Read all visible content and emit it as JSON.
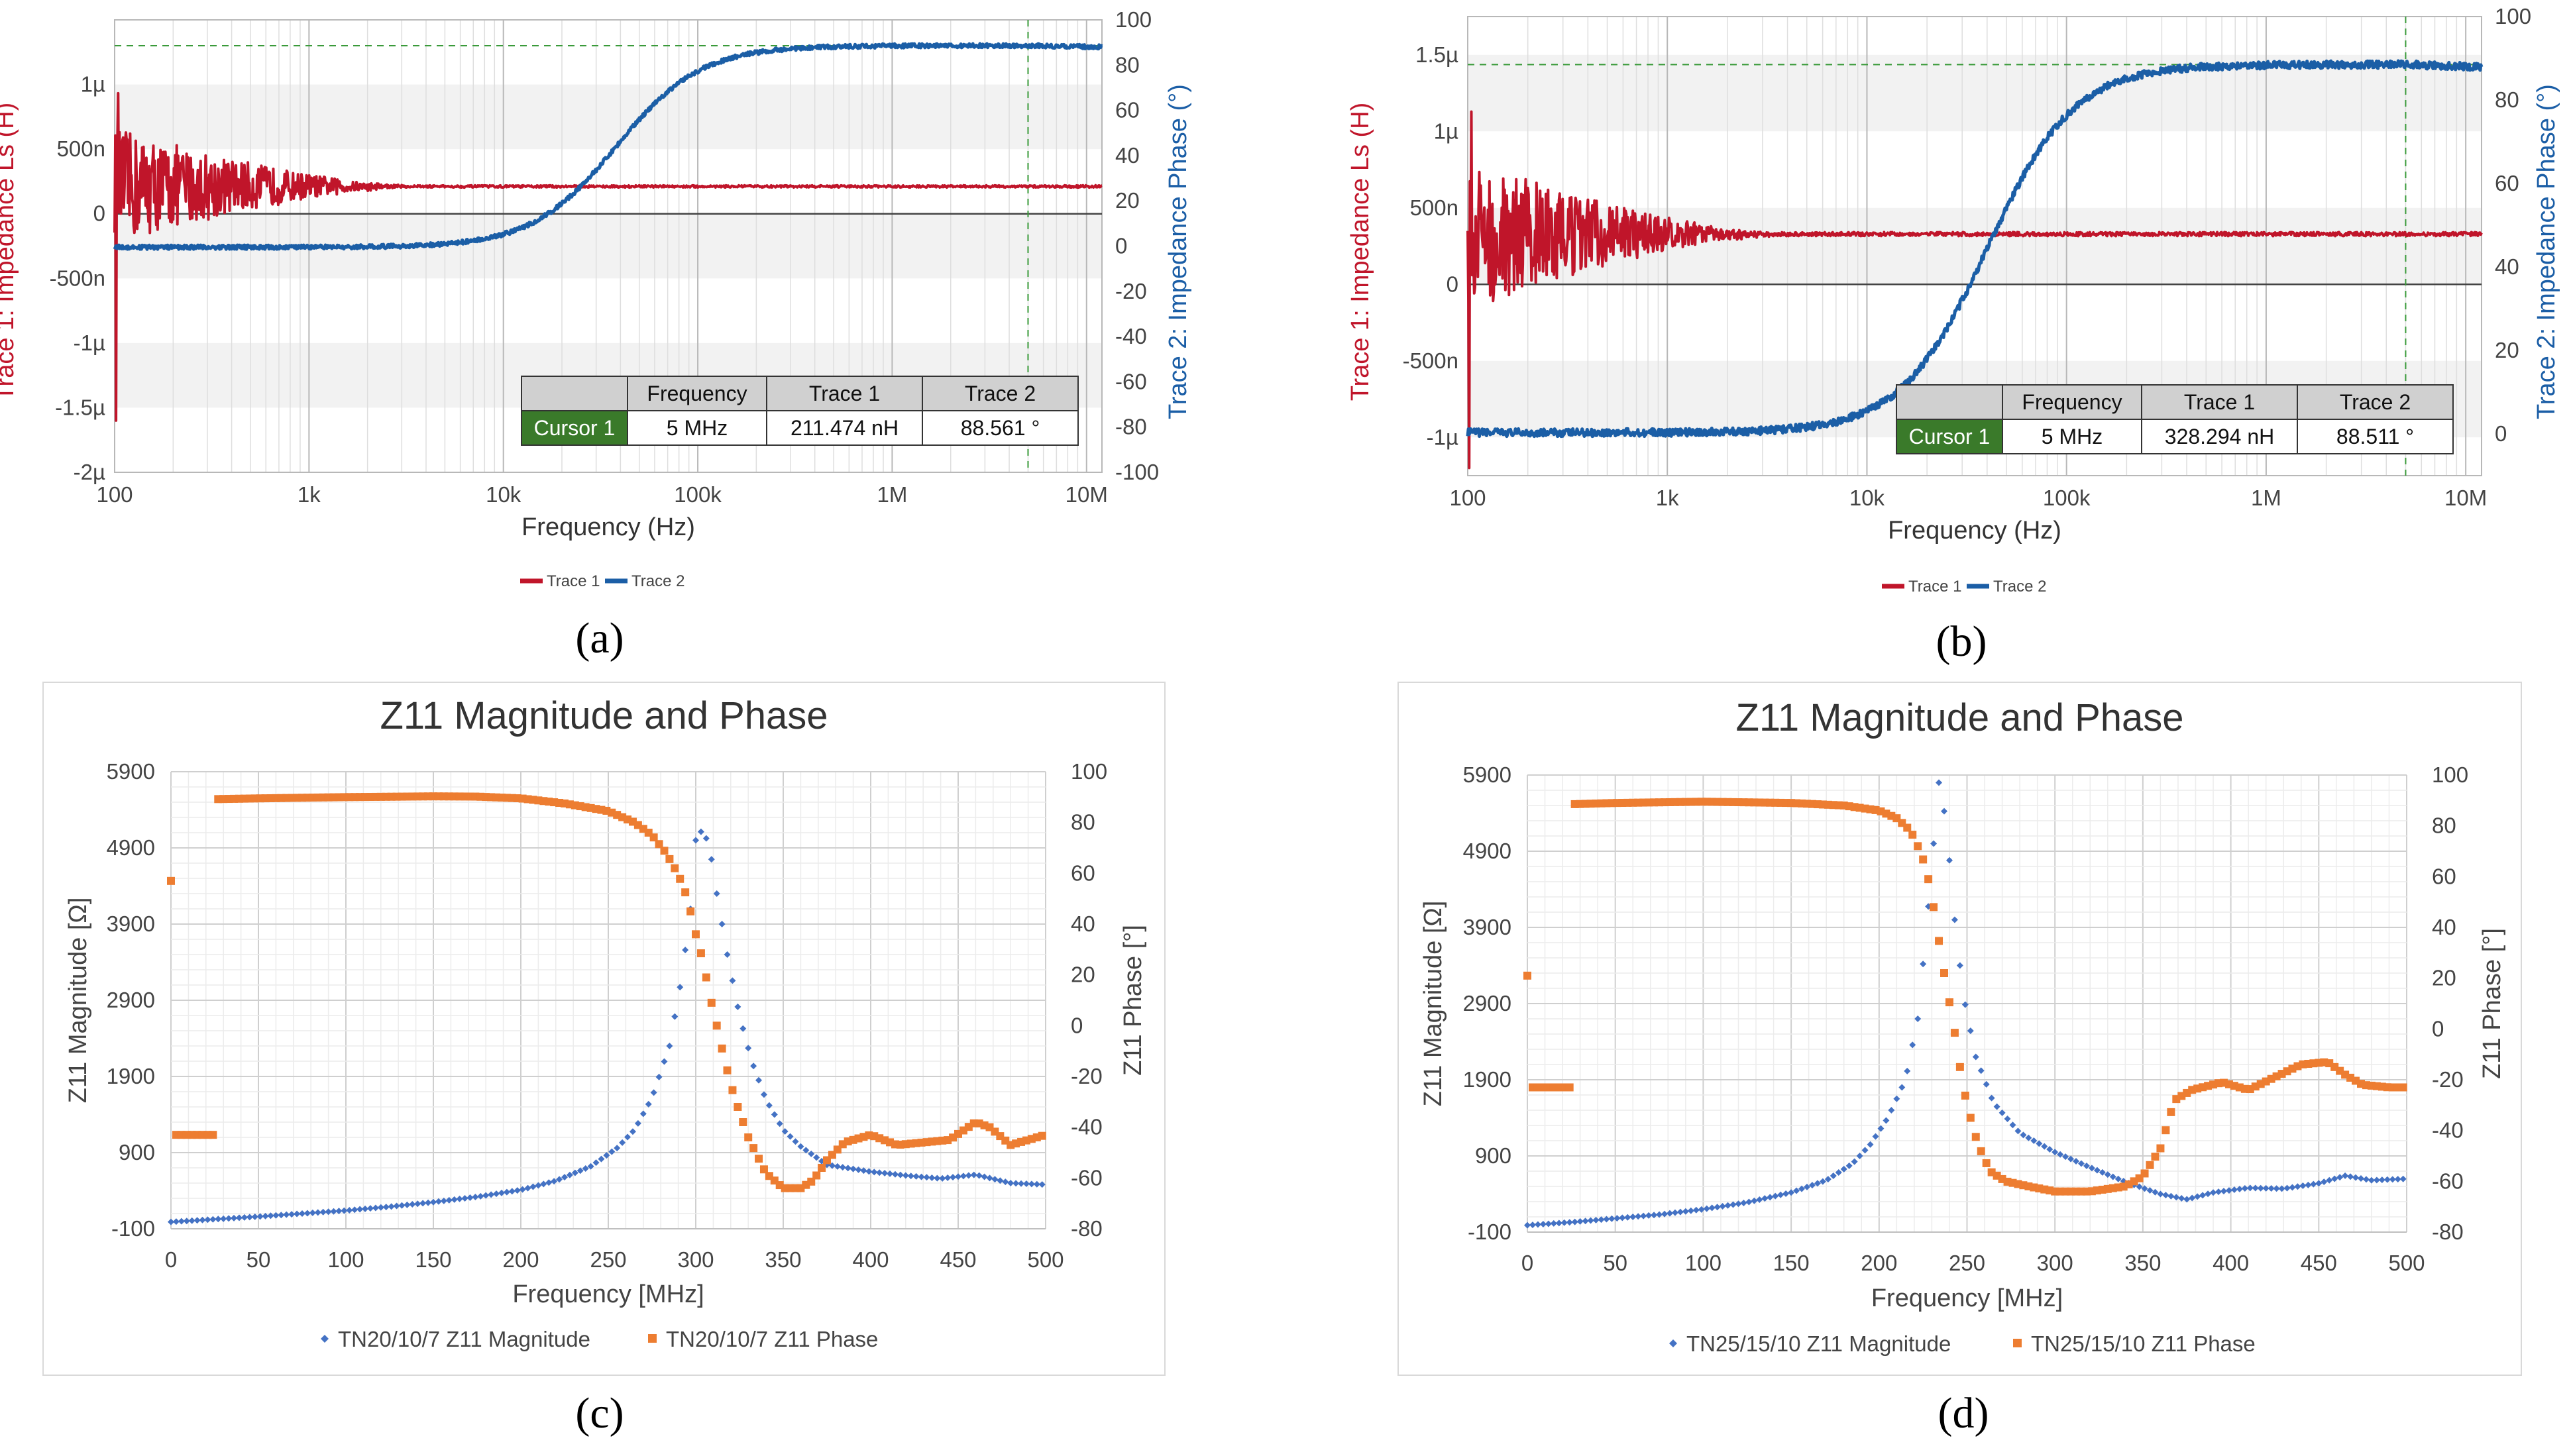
{
  "colors": {
    "trace1": "#c0152a",
    "trace2": "#1b5ea6",
    "magnitude": "#4472c4",
    "phase": "#ed7d31",
    "cursor_bg": "#3a7a2a",
    "cursor_line": "#3a9a3a"
  },
  "captions": [
    "(a)",
    "(b)",
    "(c)",
    "(d)"
  ],
  "chart_data": [
    {
      "type": "line",
      "caption": "(a)",
      "xlabel": "Frequency (Hz)",
      "xscale": "log",
      "xlim": [
        100,
        12000000
      ],
      "xticks": [
        100,
        1000,
        10000,
        100000,
        1000000,
        10000000
      ],
      "xtick_labels": [
        "100",
        "1k",
        "10k",
        "100k",
        "1M",
        "10M"
      ],
      "ylabel": "Trace 1: Impedance Ls (H)",
      "ylim": [
        -2e-06,
        1.5e-06
      ],
      "yticks": [
        1e-06,
        5e-07,
        0,
        -5e-07,
        -1e-06,
        -1.5e-06,
        -2e-06
      ],
      "ytick_labels": [
        "1µ",
        "500n",
        "0",
        "-500n",
        "-1µ",
        "-1.5µ",
        "-2µ"
      ],
      "y2label": "Trace 2: Impedance Phase (°)",
      "y2lim": [
        -100,
        100
      ],
      "y2ticks": [
        100,
        80,
        60,
        40,
        20,
        0,
        -20,
        -40,
        -60,
        -80,
        -100
      ],
      "y2tick_labels": [
        "100",
        "80",
        "60",
        "40",
        "20",
        "0",
        "-20",
        "-40",
        "-60",
        "-80",
        "-100"
      ],
      "grid": true,
      "legend": "bottom-center",
      "series": [
        {
          "name": "Trace 1",
          "axis": "left",
          "ls": 2.115e-07,
          "start_spike": -1.6e-06,
          "noise": 4.5e-07
        },
        {
          "name": "Trace 2",
          "axis": "right",
          "low": -0.5,
          "high": 88.6,
          "fc": 38000,
          "slope": 1.0
        }
      ],
      "cursor": {
        "x": 5000000,
        "headers": [
          "Frequency",
          "Trace 1",
          "Trace 2"
        ],
        "label": "Cursor 1",
        "values": [
          "5 MHz",
          "211.474 nH",
          "88.561 °"
        ]
      }
    },
    {
      "type": "line",
      "caption": "(b)",
      "xlabel": "Frequency (Hz)",
      "xscale": "log",
      "xlim": [
        100,
        12000000
      ],
      "xticks": [
        100,
        1000,
        10000,
        100000,
        1000000,
        10000000
      ],
      "xtick_labels": [
        "100",
        "1k",
        "10k",
        "100k",
        "1M",
        "10M"
      ],
      "ylabel": "Trace 1: Impedance Ls (H)",
      "ylim": [
        -1.25e-06,
        1.75e-06
      ],
      "yticks": [
        1.5e-06,
        1e-06,
        5e-07,
        0,
        -5e-07,
        -1e-06
      ],
      "ytick_labels": [
        "1.5µ",
        "1µ",
        "500n",
        "0",
        "-500n",
        "-1µ"
      ],
      "y2label": "Trace 2: Impedance Phase (°)",
      "y2lim": [
        -10,
        100
      ],
      "y2ticks": [
        100,
        80,
        60,
        40,
        20,
        0
      ],
      "y2tick_labels": [
        "100",
        "80",
        "60",
        "40",
        "20",
        "0"
      ],
      "grid": true,
      "legend": "bottom-center",
      "series": [
        {
          "name": "Trace 1",
          "axis": "left",
          "ls": 3.283e-07,
          "start_spike": -1.2e-06,
          "noise": 5e-07
        },
        {
          "name": "Trace 2",
          "axis": "right",
          "low": 0.3,
          "high": 88.5,
          "fc": 40000,
          "slope": 1.0
        }
      ],
      "cursor": {
        "x": 5000000,
        "headers": [
          "Frequency",
          "Trace 1",
          "Trace 2"
        ],
        "label": "Cursor 1",
        "values": [
          "5 MHz",
          "328.294 nH",
          "88.511 °"
        ]
      }
    },
    {
      "type": "scatter",
      "caption": "(c)",
      "title": "Z11 Magnitude and Phase",
      "xlabel": "Frequency [MHz]",
      "xlim": [
        0,
        500
      ],
      "xticks": [
        0,
        50,
        100,
        150,
        200,
        250,
        300,
        350,
        400,
        450,
        500
      ],
      "ylabel": "Z11 Magnitude [Ω]",
      "ylim": [
        -100,
        5900
      ],
      "yticks": [
        5900,
        4900,
        3900,
        2900,
        1900,
        900,
        -100
      ],
      "y2label": "Z11 Phase [°]",
      "y2lim": [
        -80,
        100
      ],
      "y2ticks": [
        100,
        80,
        60,
        40,
        20,
        0,
        -20,
        -40,
        -60,
        -80
      ],
      "grid": true,
      "legend": "bottom-center",
      "series": [
        {
          "name": "TN20/10/7 Z11 Magnitude",
          "axis": "left",
          "marker": "diamond",
          "points": [
            [
              0,
              -10
            ],
            [
              25,
              25
            ],
            [
              50,
              60
            ],
            [
              75,
              100
            ],
            [
              100,
              140
            ],
            [
              125,
              190
            ],
            [
              150,
              250
            ],
            [
              175,
              320
            ],
            [
              200,
              410
            ],
            [
              220,
              530
            ],
            [
              240,
              720
            ],
            [
              255,
              960
            ],
            [
              265,
              1200
            ],
            [
              275,
              1620
            ],
            [
              285,
              2300
            ],
            [
              292,
              3200
            ],
            [
              297,
              4100
            ],
            [
              300,
              5000
            ],
            [
              304,
              5150
            ],
            [
              308,
              4900
            ],
            [
              312,
              4300
            ],
            [
              318,
              3500
            ],
            [
              325,
              2700
            ],
            [
              332,
              2100
            ],
            [
              340,
              1600
            ],
            [
              350,
              1200
            ],
            [
              360,
              980
            ],
            [
              375,
              740
            ],
            [
              400,
              650
            ],
            [
              420,
              600
            ],
            [
              440,
              560
            ],
            [
              460,
              610
            ],
            [
              480,
              500
            ],
            [
              500,
              480
            ]
          ]
        },
        {
          "name": "TN20/10/7 Z11 Phase",
          "axis": "right",
          "marker": "square",
          "points": [
            [
              0,
              57
            ],
            [
              25,
              89.2
            ],
            [
              50,
              89.5
            ],
            [
              100,
              90
            ],
            [
              150,
              90.3
            ],
            [
              175,
              90.2
            ],
            [
              200,
              89.5
            ],
            [
              225,
              87.5
            ],
            [
              250,
              84.5
            ],
            [
              265,
              80
            ],
            [
              275,
              75
            ],
            [
              283,
              68
            ],
            [
              288,
              62
            ],
            [
              293,
              55
            ],
            [
              297,
              45
            ],
            [
              300,
              36
            ],
            [
              304,
              26
            ],
            [
              308,
              12
            ],
            [
              312,
              0
            ],
            [
              317,
              -15
            ],
            [
              322,
              -28
            ],
            [
              330,
              -44
            ],
            [
              340,
              -58
            ],
            [
              350,
              -64
            ],
            [
              360,
              -64
            ],
            [
              367,
              -61
            ],
            [
              375,
              -53
            ],
            [
              385,
              -46
            ],
            [
              400,
              -43
            ],
            [
              415,
              -47
            ],
            [
              430,
              -46
            ],
            [
              445,
              -45
            ],
            [
              460,
              -38
            ],
            [
              468,
              -40
            ],
            [
              480,
              -47
            ],
            [
              500,
              -43
            ]
          ]
        }
      ]
    },
    {
      "type": "scatter",
      "caption": "(d)",
      "title": "Z11 Magnitude and Phase",
      "xlabel": "Frequency [MHz]",
      "xlim": [
        0,
        500
      ],
      "xticks": [
        0,
        50,
        100,
        150,
        200,
        250,
        300,
        350,
        400,
        450,
        500
      ],
      "ylabel": "Z11 Magnitude [Ω]",
      "ylim": [
        -100,
        5900
      ],
      "yticks": [
        5900,
        4900,
        3900,
        2900,
        1900,
        900,
        -100
      ],
      "y2label": "Z11 Phase [°]",
      "y2lim": [
        -80,
        100
      ],
      "y2ticks": [
        100,
        80,
        60,
        40,
        20,
        0,
        -20,
        -40,
        -60,
        -80
      ],
      "grid": true,
      "legend": "bottom-center",
      "series": [
        {
          "name": "TN25/15/10 Z11 Magnitude",
          "axis": "left",
          "marker": "diamond",
          "points": [
            [
              0,
              -10
            ],
            [
              25,
              30
            ],
            [
              50,
              80
            ],
            [
              75,
              130
            ],
            [
              100,
              200
            ],
            [
              125,
              290
            ],
            [
              150,
              420
            ],
            [
              170,
              580
            ],
            [
              185,
              800
            ],
            [
              195,
              1050
            ],
            [
              205,
              1400
            ],
            [
              215,
              1900
            ],
            [
              222,
              2700
            ],
            [
              227,
              3900
            ],
            [
              231,
              5000
            ],
            [
              234,
              5800
            ],
            [
              238,
              5300
            ],
            [
              243,
              4000
            ],
            [
              248,
              3000
            ],
            [
              255,
              2200
            ],
            [
              265,
              1600
            ],
            [
              280,
              1200
            ],
            [
              300,
              950
            ],
            [
              320,
              750
            ],
            [
              340,
              560
            ],
            [
              360,
              400
            ],
            [
              375,
              330
            ],
            [
              390,
              420
            ],
            [
              410,
              480
            ],
            [
              430,
              470
            ],
            [
              450,
              540
            ],
            [
              465,
              640
            ],
            [
              480,
              580
            ],
            [
              500,
              600
            ]
          ]
        },
        {
          "name": "TN25/15/10 Z11 Phase",
          "axis": "right",
          "marker": "square",
          "points": [
            [
              0,
              21
            ],
            [
              25,
              88.5
            ],
            [
              50,
              89
            ],
            [
              100,
              89.5
            ],
            [
              150,
              89
            ],
            [
              180,
              88
            ],
            [
              200,
              86
            ],
            [
              210,
              83
            ],
            [
              218,
              78
            ],
            [
              222,
              72
            ],
            [
              226,
              65
            ],
            [
              229,
              56
            ],
            [
              232,
              44
            ],
            [
              235,
              30
            ],
            [
              238,
              18
            ],
            [
              242,
              3
            ],
            [
              246,
              -15
            ],
            [
              250,
              -30
            ],
            [
              256,
              -45
            ],
            [
              263,
              -56
            ],
            [
              272,
              -60
            ],
            [
              285,
              -62
            ],
            [
              300,
              -64
            ],
            [
              320,
              -64
            ],
            [
              340,
              -62
            ],
            [
              350,
              -58
            ],
            [
              360,
              -47
            ],
            [
              368,
              -28
            ],
            [
              378,
              -24
            ],
            [
              395,
              -21
            ],
            [
              410,
              -24
            ],
            [
              425,
              -19
            ],
            [
              440,
              -14
            ],
            [
              455,
              -13
            ],
            [
              465,
              -18
            ],
            [
              475,
              -22
            ],
            [
              490,
              -23
            ],
            [
              500,
              -23
            ]
          ]
        }
      ]
    }
  ]
}
